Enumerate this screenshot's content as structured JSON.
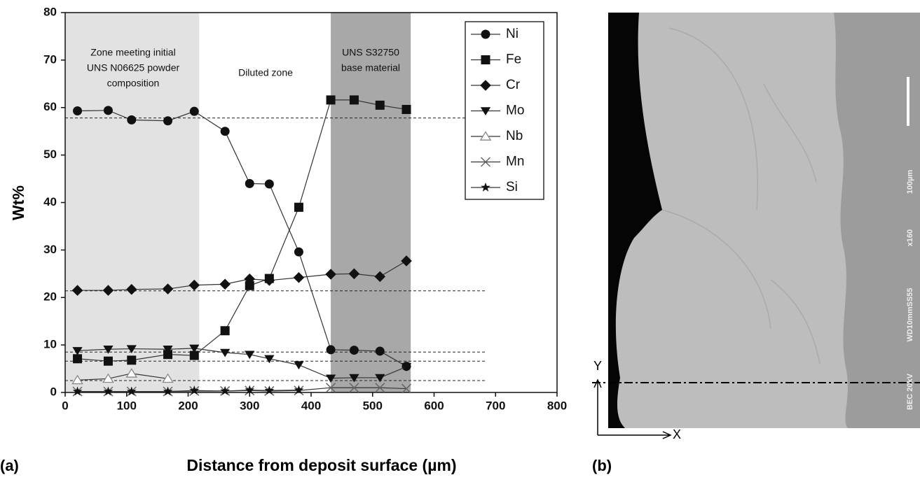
{
  "chart_data": {
    "type": "line",
    "xlabel": "Distance from deposit surface (µm)",
    "ylabel": "Wt%",
    "x": [
      20,
      70,
      108,
      167,
      210,
      260,
      300,
      332,
      380,
      432,
      470,
      512,
      555
    ],
    "series": [
      {
        "name": "Ni",
        "color": "#111111",
        "marker": "circle",
        "values": [
          59.3,
          59.4,
          57.4,
          57.2,
          59.2,
          55,
          44,
          43.9,
          29.6,
          9,
          8.9,
          8.7,
          5.5
        ]
      },
      {
        "name": "Fe",
        "color": "#111111",
        "marker": "square",
        "values": [
          7.1,
          6.6,
          6.8,
          8.0,
          7.8,
          13,
          22.5,
          24,
          39,
          61.6,
          61.6,
          60.5,
          59.6
        ]
      },
      {
        "name": "Cr",
        "color": "#111111",
        "marker": "diamond",
        "values": [
          21.5,
          21.5,
          21.7,
          21.8,
          22.6,
          22.8,
          23.9,
          23.6,
          24.2,
          24.9,
          25,
          24.4,
          27.7
        ]
      },
      {
        "name": "Mo",
        "color": "#111111",
        "marker": "triangle-down",
        "values": [
          8.8,
          9.1,
          9.2,
          9.1,
          9.3,
          8.4,
          8,
          7.1,
          5.8,
          3,
          3.1,
          3.1,
          5.4
        ]
      },
      {
        "name": "Nb",
        "color": "#888888",
        "marker": "triangle-up-open",
        "values": [
          2.6,
          2.9,
          4,
          2.9,
          null,
          null,
          null,
          null,
          null,
          null,
          null,
          null,
          null
        ]
      },
      {
        "name": "Mn",
        "color": "#666666",
        "marker": "x",
        "values": [
          0.2,
          0.2,
          0.2,
          0.2,
          0.3,
          0.3,
          0.4,
          0.3,
          0.4,
          1.0,
          1.0,
          1.0,
          0.8
        ]
      },
      {
        "name": "Si",
        "color": "#111111",
        "marker": "star",
        "values": [
          0.2,
          0.2,
          0.2,
          0.2,
          0.4,
          0.3,
          0.5,
          0.4,
          0.5,
          null,
          null,
          null,
          null
        ]
      }
    ],
    "xlim": [
      0,
      800
    ],
    "ylim": [
      0,
      80
    ],
    "xticks": [
      0,
      100,
      200,
      300,
      400,
      500,
      600,
      700,
      800
    ],
    "yticks": [
      0,
      10,
      20,
      30,
      40,
      50,
      60,
      70,
      80
    ],
    "shaded_regions": [
      {
        "xlim": [
          0,
          218
        ],
        "color": "#e2e2e2"
      },
      {
        "xlim": [
          432,
          562
        ],
        "color": "#a8a8a8"
      }
    ],
    "reference_lines": {
      "xlim": [
        0,
        683
      ],
      "values": [
        57.8,
        21.4,
        8.5,
        6.6,
        2.5
      ]
    },
    "annotations": [
      {
        "lines": [
          "Zone meeting initial",
          "UNS N06625 powder",
          "composition"
        ]
      },
      {
        "lines": [
          "Diluted zone"
        ]
      },
      {
        "lines": [
          "UNS S32750",
          "base material"
        ]
      }
    ],
    "legend": "upper right"
  },
  "panel_labels": [
    "(a)",
    "(b)"
  ],
  "micrograph": {
    "scale_bar": "100µm",
    "magnification": "x160",
    "working_distance": "WD10mmSS55",
    "beam": "BEC 20kV",
    "axis_x": "X",
    "axis_y": "Y"
  }
}
